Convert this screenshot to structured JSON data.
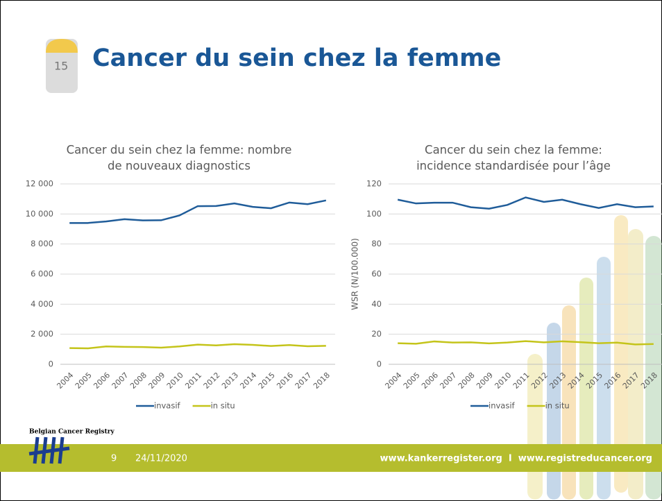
{
  "slide": {
    "title": "Cancer du sein chez la femme",
    "milestone": "15",
    "logo": "Belgian Cancer Registry",
    "page": "9",
    "date": "24/11/2020",
    "urls": "www.kankerregister.org  I  www.registreducancer.org"
  },
  "chart_data": [
    {
      "type": "line",
      "title": [
        "Cancer du sein chez la femme: nombre",
        "de nouveaux diagnostics"
      ],
      "categories": [
        "2004",
        "2005",
        "2006",
        "2007",
        "2008",
        "2009",
        "2010",
        "2011",
        "2012",
        "2013",
        "2014",
        "2015",
        "2016",
        "2017",
        "2018"
      ],
      "series": [
        {
          "name": "invasif",
          "color": "#1f5c99",
          "values": [
            9400,
            9400,
            9500,
            9650,
            9570,
            9580,
            9900,
            10520,
            10530,
            10700,
            10470,
            10380,
            10760,
            10650,
            10900
          ]
        },
        {
          "name": "in situ",
          "color": "#c4c41a",
          "values": [
            1080,
            1060,
            1190,
            1160,
            1150,
            1110,
            1190,
            1310,
            1260,
            1340,
            1290,
            1220,
            1280,
            1200,
            1230
          ]
        }
      ],
      "ylim": [
        0,
        12000
      ],
      "yticks": [
        0,
        {
          "value": 2000,
          "label": "2 000"
        },
        {
          "value": 4000,
          "label": "4 000"
        },
        {
          "value": 6000,
          "label": "6 000"
        },
        {
          "value": 8000,
          "label": "8 000"
        },
        {
          "value": 10000,
          "label": "10 000"
        },
        {
          "value": 12000,
          "label": "12 000"
        }
      ],
      "grid": true,
      "legend": "bottom"
    },
    {
      "type": "line",
      "title": [
        "Cancer du sein chez la femme:",
        "incidence standardisée pour l’âge"
      ],
      "y_label": "WSR (N/100.000)",
      "categories": [
        "2004",
        "2005",
        "2006",
        "2007",
        "2008",
        "2009",
        "2010",
        "2011",
        "2012",
        "2013",
        "2014",
        "2015",
        "2016",
        "2017",
        "2018"
      ],
      "series": [
        {
          "name": "invasif",
          "color": "#1f5c99",
          "values": [
            109.5,
            107,
            107.5,
            107.5,
            104.5,
            103.5,
            106,
            111,
            108,
            109.5,
            106.5,
            104,
            106.5,
            104.5,
            105
          ]
        },
        {
          "name": "in situ",
          "color": "#c4c41a",
          "values": [
            14,
            13.7,
            15.2,
            14.5,
            14.6,
            13.9,
            14.5,
            15.4,
            14.6,
            15.3,
            14.7,
            14,
            14.4,
            13.2,
            13.5
          ]
        }
      ],
      "ylim": [
        0,
        120
      ],
      "yticks": [
        0,
        20,
        40,
        60,
        80,
        100,
        120
      ],
      "grid": true,
      "legend": "bottom"
    }
  ]
}
